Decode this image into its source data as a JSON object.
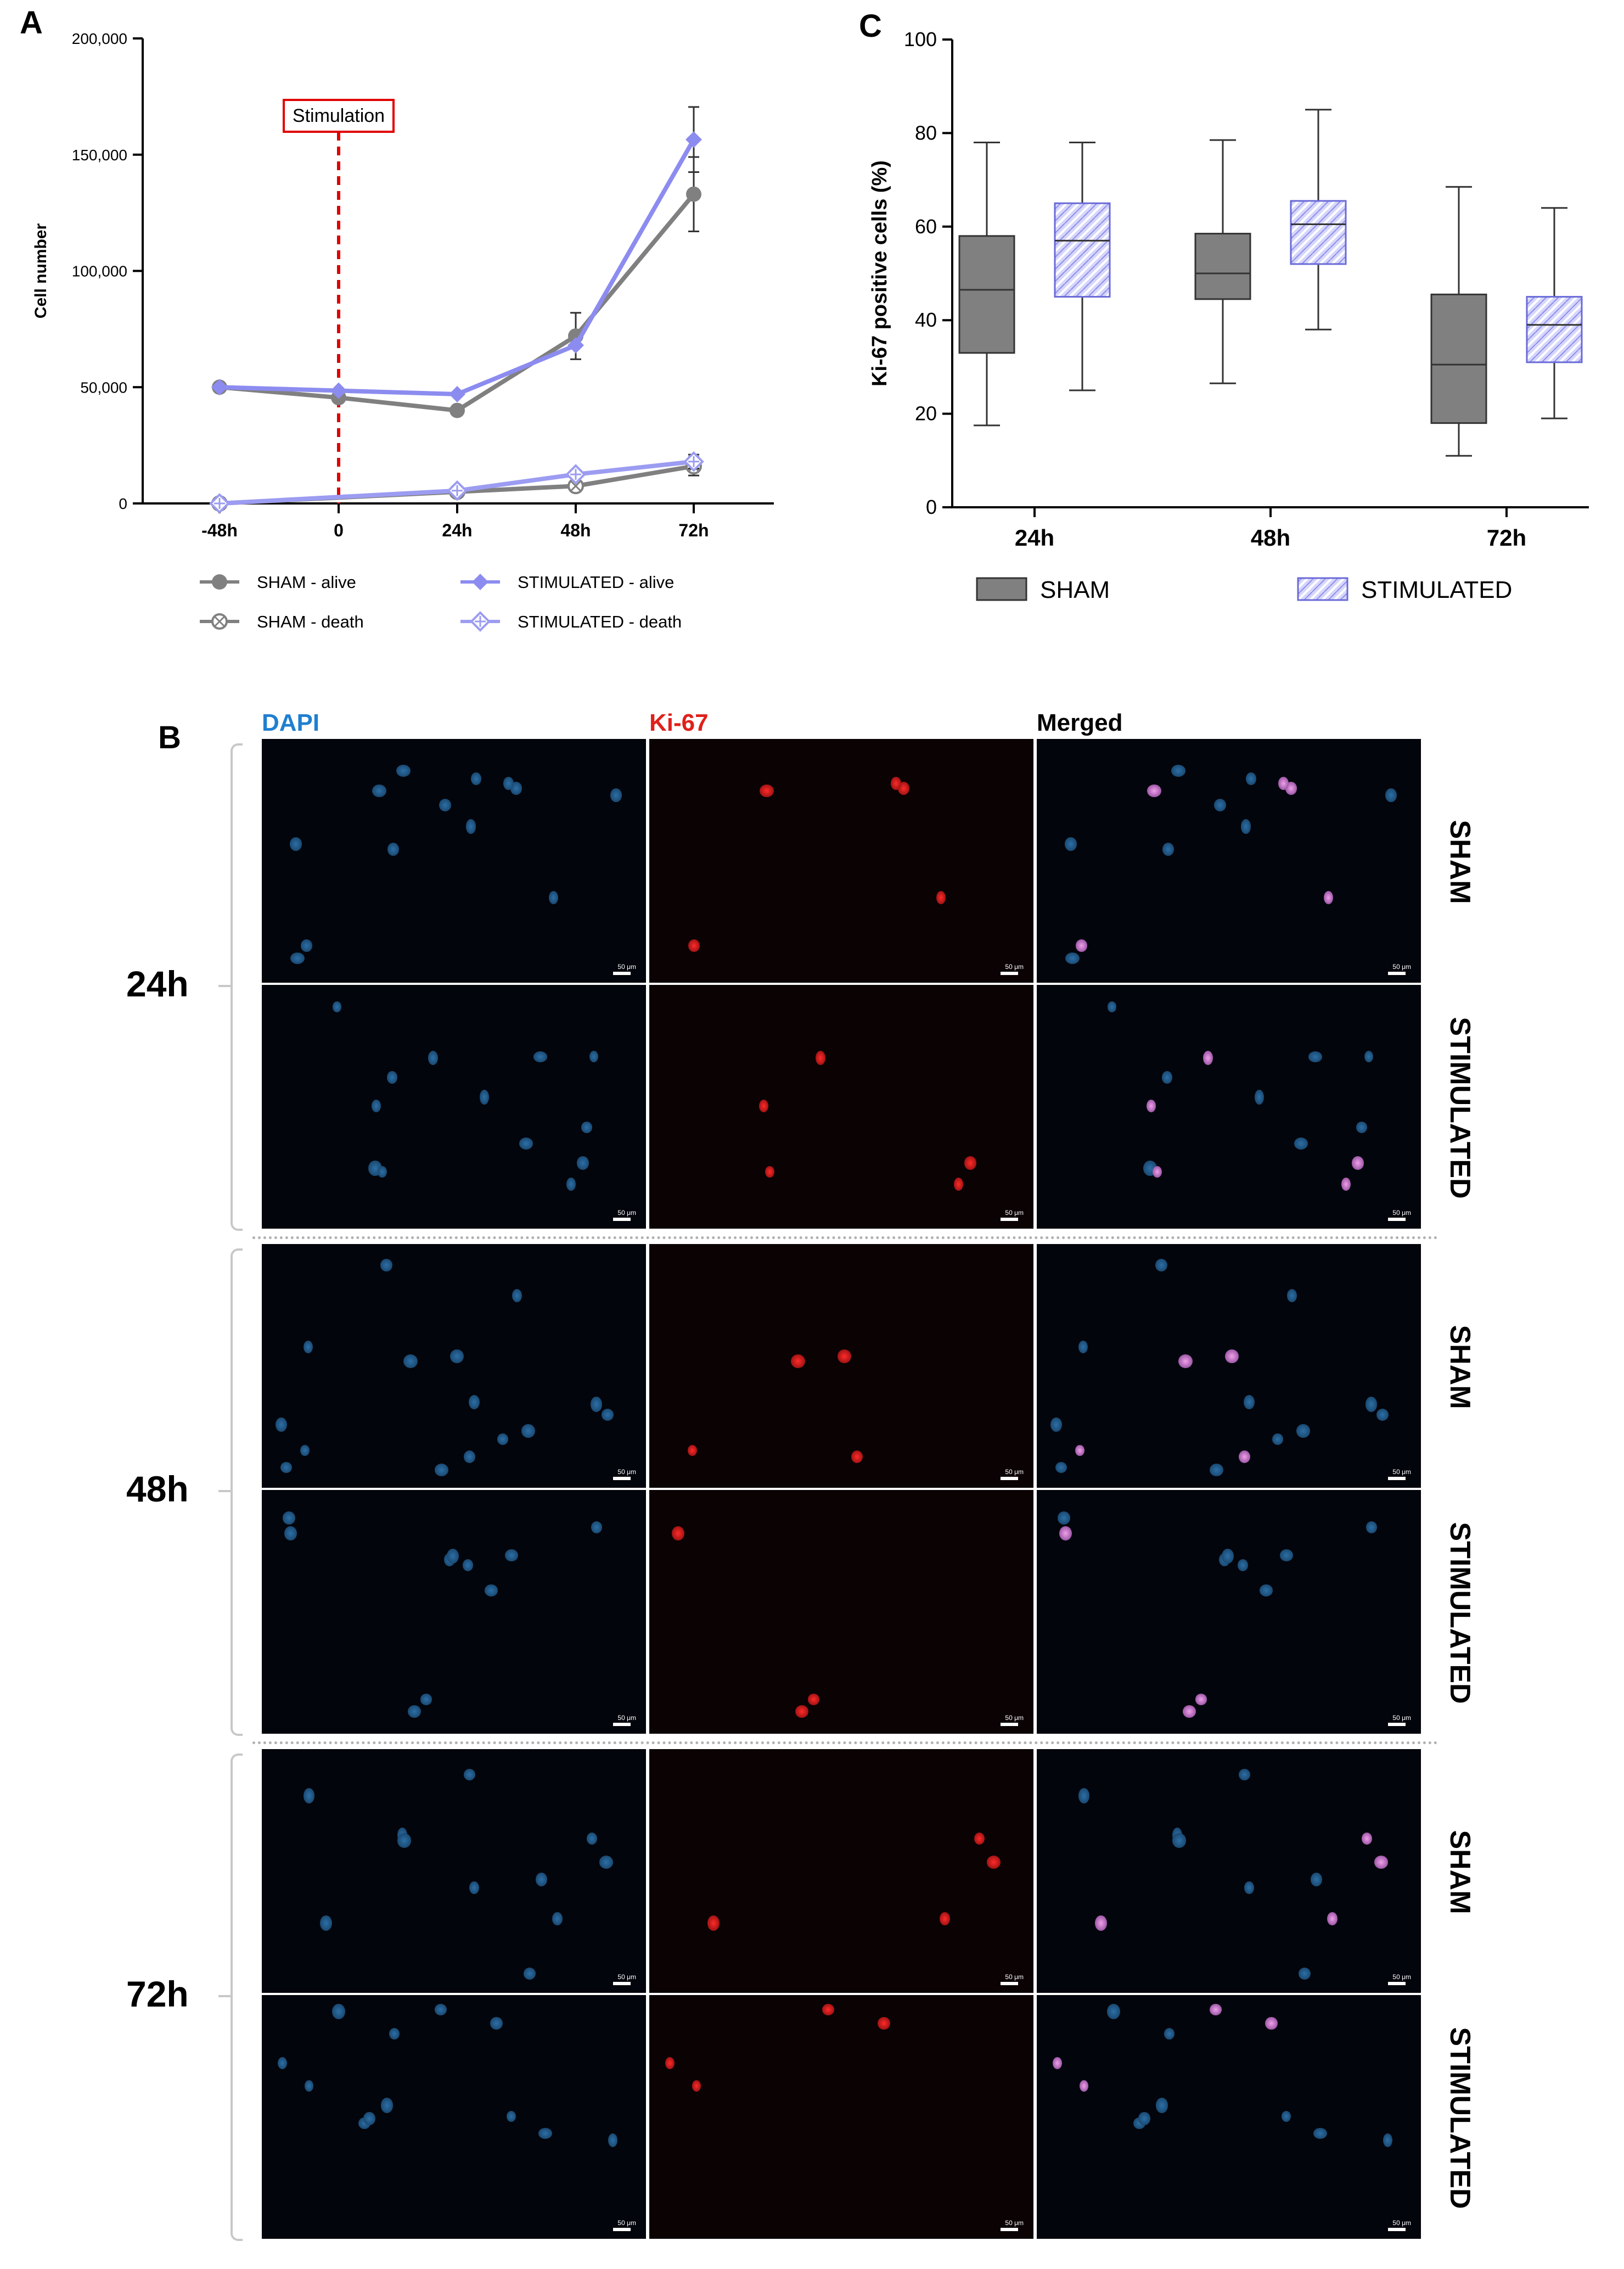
{
  "panels": {
    "a_letter": "A",
    "b_letter": "B",
    "c_letter": "C"
  },
  "chart_data": [
    {
      "type": "line",
      "panel": "A",
      "title": "",
      "xlabel": "",
      "ylabel": "Cell number",
      "categories": [
        "-48h",
        "0",
        "24h",
        "48h",
        "72h"
      ],
      "x_positions": [
        -48,
        0,
        24,
        48,
        72
      ],
      "ylim": [
        0,
        200000
      ],
      "yticks": [
        0,
        50000,
        100000,
        150000,
        200000
      ],
      "ytick_labels": [
        "0",
        "50,000",
        "100,000",
        "150,000",
        "200,000"
      ],
      "annotation": {
        "text": "Stimulation",
        "x": 0
      },
      "series": [
        {
          "name": "SHAM - alive",
          "color": "#808080",
          "marker": "filled-circle",
          "x": [
            -48,
            0,
            24,
            48,
            72
          ],
          "values": [
            50000,
            45500,
            40000,
            72000,
            133000
          ],
          "error": [
            null,
            null,
            null,
            10000,
            16000
          ]
        },
        {
          "name": "SHAM - death",
          "color": "#808080",
          "marker": "crossed-circle",
          "x": [
            -48,
            24,
            48,
            72
          ],
          "values": [
            0,
            5000,
            7500,
            16000
          ],
          "error": [
            null,
            null,
            null,
            4000
          ]
        },
        {
          "name": "STIMULATED - alive",
          "color": "#8c8cf0",
          "marker": "filled-diamond",
          "x": [
            -48,
            0,
            24,
            48,
            72
          ],
          "values": [
            50000,
            48500,
            47000,
            68000,
            156500
          ],
          "error": [
            null,
            null,
            null,
            null,
            14000
          ]
        },
        {
          "name": "STIMULATED - death",
          "color": "#9c9cf2",
          "marker": "crossed-diamond",
          "x": [
            -48,
            24,
            48,
            72
          ],
          "values": [
            0,
            5500,
            12500,
            18000
          ],
          "error": [
            null,
            null,
            null,
            3000
          ]
        }
      ],
      "legend": [
        "SHAM - alive",
        "SHAM - death",
        "STIMULATED - alive",
        "STIMULATED - death"
      ]
    },
    {
      "type": "box",
      "panel": "C",
      "title": "",
      "xlabel": "",
      "ylabel": "Ki-67 positive cells (%)",
      "categories": [
        "24h",
        "48h",
        "72h"
      ],
      "ylim": [
        0,
        100
      ],
      "yticks": [
        0,
        20,
        40,
        60,
        80,
        100
      ],
      "series": [
        {
          "name": "SHAM",
          "color": "#808080",
          "boxes": [
            {
              "min": 17.5,
              "q1": 33,
              "median": 46.5,
              "q3": 58,
              "max": 78
            },
            {
              "min": 26.5,
              "q1": 44.5,
              "median": 50,
              "q3": 58.5,
              "max": 78.5
            },
            {
              "min": 11,
              "q1": 18,
              "median": 30.5,
              "q3": 45.5,
              "max": 68.5
            }
          ]
        },
        {
          "name": "STIMULATED",
          "color": "#9c9cf2",
          "boxes": [
            {
              "min": 25,
              "q1": 45,
              "median": 57,
              "q3": 65,
              "max": 78
            },
            {
              "min": 38,
              "q1": 52,
              "median": 60.5,
              "q3": 65.5,
              "max": 85
            },
            {
              "min": 19,
              "q1": 31,
              "median": 39,
              "q3": 45,
              "max": 64
            }
          ]
        }
      ],
      "legend": [
        "SHAM",
        "STIMULATED"
      ]
    }
  ],
  "micrographs": {
    "channels": [
      {
        "label": "DAPI",
        "color": "#1f7fd0"
      },
      {
        "label": "Ki-67",
        "color": "#e0201a"
      },
      {
        "label": "Merged",
        "color": "#000000"
      }
    ],
    "timepoints": [
      "24h",
      "48h",
      "72h"
    ],
    "conditions": [
      "SHAM",
      "STIMULATED"
    ],
    "scale_bar": "50 μm"
  }
}
